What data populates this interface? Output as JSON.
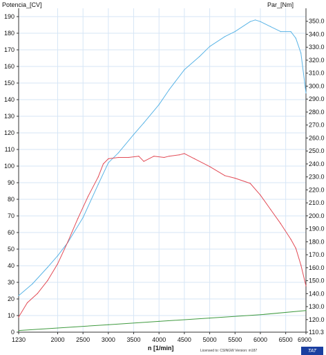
{
  "chart_data": {
    "type": "line",
    "title": "",
    "xlabel": "n  [1/min]",
    "ylabel_left": "Potencia_[CV]",
    "ylabel_right": "Par_[Nm]",
    "x_ticks": [
      "1230",
      "2000",
      "2500",
      "3000",
      "3500",
      "4000",
      "4500",
      "5000",
      "5500",
      "6000",
      "6500",
      "6900"
    ],
    "xlim": [
      1230,
      6900
    ],
    "ylim_left": [
      0,
      195
    ],
    "ylim_right": [
      110.3,
      360
    ],
    "y_ticks_left": [
      "0",
      "10",
      "20",
      "30",
      "40",
      "50",
      "60",
      "70",
      "80",
      "90",
      "100",
      "110",
      "120",
      "130",
      "140",
      "150",
      "160",
      "170",
      "180",
      "190"
    ],
    "y_ticks_right": [
      "110.3",
      "120.0",
      "130.0",
      "140.0",
      "150.0",
      "160.0",
      "170.0",
      "180.0",
      "190.0",
      "200.0",
      "210.0",
      "220.0",
      "230.0",
      "240.0",
      "250.0",
      "260.0",
      "270.0",
      "280.0",
      "290.0",
      "300.0",
      "310.0",
      "320.0",
      "330.0",
      "340.0",
      "350.0"
    ],
    "grid": true,
    "series": [
      {
        "axis": "left",
        "color": "#5ab4e6",
        "x": [
          1230,
          1500,
          1800,
          2000,
          2200,
          2500,
          2800,
          3000,
          3200,
          3500,
          3700,
          4000,
          4200,
          4500,
          4800,
          5000,
          5300,
          5500,
          5800,
          5900,
          6000,
          6200,
          6400,
          6600,
          6700,
          6800,
          6900
        ],
        "values": [
          22,
          29,
          39,
          46,
          54,
          69,
          89,
          102,
          108,
          119,
          126,
          137,
          146,
          158,
          166,
          172,
          178,
          181,
          187,
          188,
          187,
          184,
          181,
          181,
          177,
          168,
          144
        ]
      },
      {
        "axis": "right",
        "color": "#e24a55",
        "x": [
          1230,
          1400,
          1600,
          1800,
          2000,
          2200,
          2400,
          2600,
          2800,
          2900,
          3000,
          3200,
          3400,
          3600,
          3700,
          3900,
          4100,
          4200,
          4400,
          4500,
          4700,
          5000,
          5300,
          5500,
          5800,
          6000,
          6200,
          6400,
          6600,
          6700,
          6800,
          6900
        ],
        "values": [
          122,
          133,
          140,
          150,
          163,
          180,
          198,
          215,
          230,
          240,
          244,
          245,
          245,
          246,
          242,
          246,
          245,
          246,
          247,
          248,
          244,
          238,
          231,
          229,
          225,
          216,
          205,
          194,
          182,
          175,
          162,
          146
        ]
      },
      {
        "axis": "left",
        "color": "#3f9a3f",
        "x": [
          1230,
          2000,
          3000,
          4000,
          5000,
          6000,
          6900
        ],
        "values": [
          1,
          2.5,
          4.5,
          6.5,
          8.5,
          10.5,
          13
        ]
      }
    ]
  },
  "footer": {
    "license": "Licensed to: CSINGW  Version: m187",
    "badge": "TAT"
  }
}
